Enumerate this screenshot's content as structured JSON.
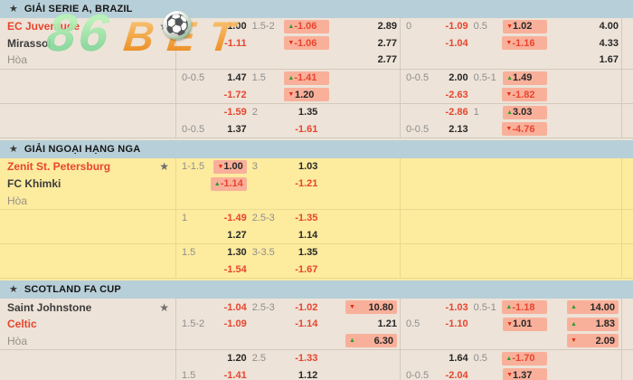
{
  "brand": {
    "eight_six": "86",
    "bet": "BET",
    "ball_icon": "soccer-ball"
  },
  "colors": {
    "league_header_bg": "#b7cfd8",
    "section_bg": "#ede3d8",
    "section_bg_yellow": "#fdeb9e",
    "highlight_bg": "#f9b09a",
    "odds_red": "#e8442e",
    "odds_black": "#272727",
    "label_gray": "#8e8e8e",
    "arrow_up": "#2f9c2f",
    "arrow_down": "#e02b12",
    "logo_green": "#55cf6d",
    "logo_orange": "#f59d33"
  },
  "sections": [
    {
      "title": "GIẢI SERIE A, BRAZIL",
      "theme": "light",
      "teams": [
        {
          "name": "EC Juventude",
          "c": "red",
          "star": true
        },
        {
          "name": "Mirassol",
          "c": "dark",
          "star": false
        },
        {
          "name": "Hòa",
          "c": "gray",
          "star": false
        }
      ],
      "groups": [
        [
          [
            {
              "v": "0",
              "k": "g"
            },
            {
              "v": "1.00",
              "k": "b"
            },
            {
              "v": "1.5-2",
              "k": "g"
            },
            {
              "v": "-1.06",
              "k": "r",
              "x": 1,
              "a": "u"
            },
            {
              "v": "2.89",
              "k": "b"
            },
            {
              "v": "0",
              "k": "g"
            },
            {
              "v": "-1.09",
              "k": "r"
            },
            {
              "v": "0.5",
              "k": "g"
            },
            {
              "v": "1.02",
              "k": "b",
              "x": 1,
              "a": "d"
            },
            {
              "v": "4.00",
              "k": "b"
            }
          ],
          [
            null,
            {
              "v": "-1.11",
              "k": "r"
            },
            null,
            {
              "v": "-1.06",
              "k": "r",
              "x": 1,
              "a": "d"
            },
            {
              "v": "2.77",
              "k": "b"
            },
            null,
            {
              "v": "-1.04",
              "k": "r"
            },
            null,
            {
              "v": "-1.16",
              "k": "r",
              "x": 1,
              "a": "d"
            },
            {
              "v": "4.33",
              "k": "b"
            }
          ],
          [
            null,
            null,
            null,
            null,
            {
              "v": "2.77",
              "k": "b"
            },
            null,
            null,
            null,
            null,
            {
              "v": "1.67",
              "k": "b"
            }
          ]
        ],
        [
          [
            {
              "v": "0-0.5",
              "k": "g"
            },
            {
              "v": "1.47",
              "k": "b"
            },
            {
              "v": "1.5",
              "k": "g"
            },
            {
              "v": "-1.41",
              "k": "r",
              "x": 1,
              "a": "u"
            },
            null,
            {
              "v": "0-0.5",
              "k": "g"
            },
            {
              "v": "2.00",
              "k": "b"
            },
            {
              "v": "0.5-1",
              "k": "g"
            },
            {
              "v": "1.49",
              "k": "b",
              "x": 1,
              "a": "u"
            },
            null
          ],
          [
            null,
            {
              "v": "-1.72",
              "k": "r"
            },
            null,
            {
              "v": "1.20",
              "k": "b",
              "x": 1,
              "a": "d"
            },
            null,
            null,
            {
              "v": "-2.63",
              "k": "r"
            },
            null,
            {
              "v": "-1.82",
              "k": "r",
              "x": 1,
              "a": "d"
            },
            null
          ]
        ],
        [
          [
            null,
            {
              "v": "-1.59",
              "k": "r"
            },
            {
              "v": "2",
              "k": "g"
            },
            {
              "v": "1.35",
              "k": "b"
            },
            null,
            null,
            {
              "v": "-2.86",
              "k": "r"
            },
            {
              "v": "1",
              "k": "g"
            },
            {
              "v": "3.03",
              "k": "b",
              "x": 1,
              "a": "u"
            },
            null
          ],
          [
            {
              "v": "0-0.5",
              "k": "g"
            },
            {
              "v": "1.37",
              "k": "b"
            },
            null,
            {
              "v": "-1.61",
              "k": "r"
            },
            null,
            {
              "v": "0-0.5",
              "k": "g"
            },
            {
              "v": "2.13",
              "k": "b"
            },
            null,
            {
              "v": "-4.76",
              "k": "r",
              "x": 1,
              "a": "d"
            },
            null
          ]
        ]
      ]
    },
    {
      "title": "GIẢI NGOẠI HẠNG NGA",
      "theme": "yellow",
      "teams": [
        {
          "name": "Zenit St. Petersburg",
          "c": "red",
          "star": true
        },
        {
          "name": "FC Khimki",
          "c": "dark",
          "star": false
        },
        {
          "name": "Hòa",
          "c": "gray",
          "star": false
        }
      ],
      "groups": [
        [
          [
            {
              "v": "1-1.5",
              "k": "g"
            },
            {
              "v": "1.00",
              "k": "b",
              "x": 1,
              "a": "d"
            },
            {
              "v": "3",
              "k": "g"
            },
            {
              "v": "1.03",
              "k": "b"
            },
            null,
            null,
            null,
            null,
            null,
            null
          ],
          [
            null,
            {
              "v": "-1.14",
              "k": "r",
              "x": 1,
              "a": "u"
            },
            null,
            {
              "v": "-1.21",
              "k": "r"
            },
            null,
            null,
            null,
            null,
            null,
            null
          ],
          [
            null,
            null,
            null,
            null,
            null,
            null,
            null,
            null,
            null,
            null
          ]
        ],
        [
          [
            {
              "v": "1",
              "k": "g"
            },
            {
              "v": "-1.49",
              "k": "r"
            },
            {
              "v": "2.5-3",
              "k": "g"
            },
            {
              "v": "-1.35",
              "k": "r"
            },
            null,
            null,
            null,
            null,
            null,
            null
          ],
          [
            null,
            {
              "v": "1.27",
              "k": "b"
            },
            null,
            {
              "v": "1.14",
              "k": "b"
            },
            null,
            null,
            null,
            null,
            null,
            null
          ]
        ],
        [
          [
            {
              "v": "1.5",
              "k": "g"
            },
            {
              "v": "1.30",
              "k": "b"
            },
            {
              "v": "3-3.5",
              "k": "g"
            },
            {
              "v": "1.35",
              "k": "b"
            },
            null,
            null,
            null,
            null,
            null,
            null
          ],
          [
            null,
            {
              "v": "-1.54",
              "k": "r"
            },
            null,
            {
              "v": "-1.67",
              "k": "r"
            },
            null,
            null,
            null,
            null,
            null,
            null
          ]
        ]
      ]
    },
    {
      "title": "SCOTLAND FA CUP",
      "theme": "light",
      "teams": [
        {
          "name": "Saint Johnstone",
          "c": "dark",
          "star": true
        },
        {
          "name": "Celtic",
          "c": "red",
          "star": false
        },
        {
          "name": "Hòa",
          "c": "gray",
          "star": false
        }
      ],
      "groups": [
        [
          [
            null,
            {
              "v": "-1.04",
              "k": "r"
            },
            {
              "v": "2.5-3",
              "k": "g"
            },
            {
              "v": "-1.02",
              "k": "r"
            },
            {
              "v": "10.80",
              "k": "b",
              "x": 1,
              "a": "d"
            },
            null,
            {
              "v": "-1.03",
              "k": "r"
            },
            {
              "v": "0.5-1",
              "k": "g"
            },
            {
              "v": "-1.18",
              "k": "r",
              "x": 1,
              "a": "u"
            },
            {
              "v": "14.00",
              "k": "b",
              "x": 1,
              "a": "u"
            }
          ],
          [
            {
              "v": "1.5-2",
              "k": "g"
            },
            {
              "v": "-1.09",
              "k": "r"
            },
            null,
            {
              "v": "-1.14",
              "k": "r"
            },
            {
              "v": "1.21",
              "k": "b"
            },
            {
              "v": "0.5",
              "k": "g"
            },
            {
              "v": "-1.10",
              "k": "r"
            },
            null,
            {
              "v": "1.01",
              "k": "b",
              "x": 1,
              "a": "d"
            },
            {
              "v": "1.83",
              "k": "b",
              "x": 1,
              "a": "u"
            }
          ],
          [
            null,
            null,
            null,
            null,
            {
              "v": "6.30",
              "k": "b",
              "x": 1,
              "a": "u"
            },
            null,
            null,
            null,
            null,
            {
              "v": "2.09",
              "k": "b",
              "x": 1,
              "a": "d"
            }
          ]
        ],
        [
          [
            null,
            {
              "v": "1.20",
              "k": "b"
            },
            {
              "v": "2.5",
              "k": "g"
            },
            {
              "v": "-1.33",
              "k": "r"
            },
            null,
            null,
            {
              "v": "1.64",
              "k": "b"
            },
            {
              "v": "0.5",
              "k": "g"
            },
            {
              "v": "-1.70",
              "k": "r",
              "x": 1,
              "a": "u"
            },
            null
          ],
          [
            {
              "v": "1.5",
              "k": "g"
            },
            {
              "v": "-1.41",
              "k": "r"
            },
            null,
            {
              "v": "1.12",
              "k": "b"
            },
            null,
            {
              "v": "0-0.5",
              "k": "g"
            },
            {
              "v": "-2.04",
              "k": "r"
            },
            null,
            {
              "v": "1.37",
              "k": "b",
              "x": 1,
              "a": "d"
            },
            null
          ]
        ]
      ]
    }
  ]
}
